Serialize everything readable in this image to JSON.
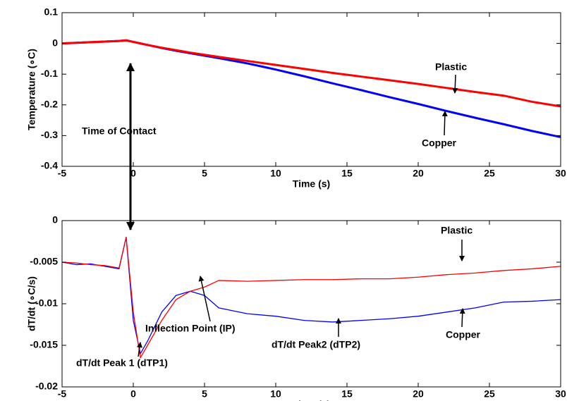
{
  "chart_data": [
    {
      "type": "line",
      "xlabel": "Time (s)",
      "ylabel": "Temperature (∘C)",
      "x": [
        -5,
        -4,
        -3,
        -2,
        -1,
        -0.5,
        0,
        0.5,
        1,
        2,
        3,
        4,
        5,
        6,
        8,
        10,
        12,
        14,
        16,
        18,
        20,
        22,
        24,
        26,
        28,
        30
      ],
      "series": [
        {
          "name": "Copper",
          "color": "#0000ff",
          "values": [
            0,
            0.002,
            0.004,
            0.006,
            0.008,
            0.01,
            0.005,
            0,
            -0.005,
            -0.015,
            -0.024,
            -0.032,
            -0.04,
            -0.048,
            -0.065,
            -0.085,
            -0.107,
            -0.13,
            -0.152,
            -0.175,
            -0.197,
            -0.22,
            -0.242,
            -0.263,
            -0.285,
            -0.305
          ]
        },
        {
          "name": "Plastic",
          "color": "#ff0000",
          "values": [
            0,
            0.002,
            0.004,
            0.006,
            0.008,
            0.01,
            0.005,
            0,
            -0.005,
            -0.014,
            -0.022,
            -0.03,
            -0.037,
            -0.044,
            -0.057,
            -0.07,
            -0.083,
            -0.096,
            -0.108,
            -0.12,
            -0.132,
            -0.145,
            -0.158,
            -0.17,
            -0.19,
            -0.205
          ]
        }
      ],
      "xlim": [
        -5,
        30
      ],
      "xticks": [
        -5,
        0,
        5,
        10,
        15,
        20,
        25,
        30
      ],
      "ylim": [
        -0.4,
        0.1
      ],
      "yticks": [
        0.1,
        0,
        -0.1,
        -0.2,
        -0.3,
        -0.4
      ],
      "annotations": [
        "Time of Contact"
      ]
    },
    {
      "type": "line",
      "xlabel": "Time (s)",
      "ylabel": "dT/dt (∘C/s)",
      "x": [
        -5,
        -4,
        -3,
        -2,
        -1,
        -0.5,
        0,
        0.5,
        1,
        2,
        3,
        4,
        5,
        6,
        8,
        10,
        12,
        14,
        16,
        18,
        20,
        22,
        24,
        26,
        28,
        30
      ],
      "series": [
        {
          "name": "Copper",
          "color": "#0000ff",
          "values": [
            -0.005,
            -0.0053,
            -0.0052,
            -0.0055,
            -0.0058,
            -0.002,
            -0.012,
            -0.016,
            -0.0145,
            -0.011,
            -0.009,
            -0.0085,
            -0.009,
            -0.0105,
            -0.0112,
            -0.0115,
            -0.012,
            -0.0122,
            -0.012,
            -0.0118,
            -0.0115,
            -0.011,
            -0.0105,
            -0.0098,
            -0.0097,
            -0.0095
          ]
        },
        {
          "name": "Plastic",
          "color": "#ff0000",
          "values": [
            -0.005,
            -0.0051,
            -0.0053,
            -0.0054,
            -0.0057,
            -0.002,
            -0.011,
            -0.0165,
            -0.015,
            -0.012,
            -0.0095,
            -0.0085,
            -0.008,
            -0.0072,
            -0.0073,
            -0.0072,
            -0.0071,
            -0.0071,
            -0.007,
            -0.007,
            -0.0068,
            -0.0065,
            -0.0063,
            -0.006,
            -0.0058,
            -0.0055
          ]
        }
      ],
      "xlim": [
        -5,
        30
      ],
      "xticks": [
        -5,
        0,
        5,
        10,
        15,
        20,
        25,
        30
      ],
      "ylim": [
        -0.02,
        0
      ],
      "yticks": [
        0,
        -0.005,
        -0.01,
        -0.015,
        -0.02
      ],
      "annotations": [
        "Inflection Point (IP)",
        "dT/dt Peak 1 (dTP1)",
        "dT/dt Peak2 (dTP2)"
      ]
    }
  ]
}
